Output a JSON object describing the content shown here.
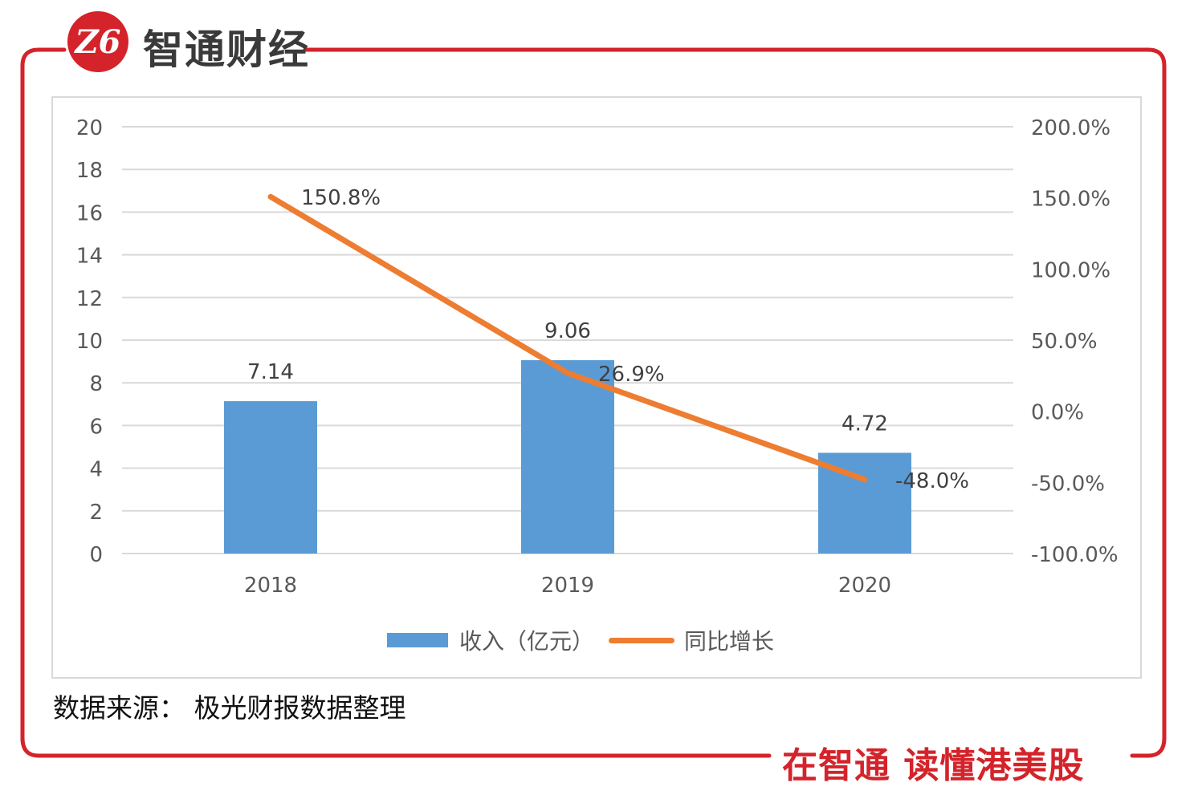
{
  "header": {
    "logo_text": "Z6",
    "brand_name": "智通财经"
  },
  "footer": {
    "source": "数据来源：  极光财报数据整理",
    "slogan": "在智通  读懂港美股"
  },
  "colors": {
    "frame": "#d4232a",
    "bar": "#5b9bd5",
    "line": "#ed7d31",
    "grid": "#d9d9d9",
    "axis_text": "#595959",
    "label_text": "#404040"
  },
  "chart_data": {
    "type": "bar",
    "title": "",
    "categories": [
      "2018",
      "2019",
      "2020"
    ],
    "series": [
      {
        "name": "收入（亿元）",
        "type": "bar",
        "axis": "left",
        "values": [
          7.14,
          9.06,
          4.72
        ],
        "labels": [
          "7.14",
          "9.06",
          "4.72"
        ]
      },
      {
        "name": "同比增长",
        "type": "line",
        "axis": "right",
        "values": [
          150.8,
          26.9,
          -48.0
        ],
        "labels": [
          "150.8%",
          "26.9%",
          "-48.0%"
        ]
      }
    ],
    "y_left": {
      "min": 0,
      "max": 20,
      "step": 2,
      "tick_labels": [
        "0",
        "2",
        "4",
        "6",
        "8",
        "10",
        "12",
        "14",
        "16",
        "18",
        "20"
      ]
    },
    "y_right": {
      "min": -100,
      "max": 200,
      "step": 50,
      "tick_labels": [
        "-100.0%",
        "-50.0%",
        "0.0%",
        "50.0%",
        "100.0%",
        "150.0%",
        "200.0%"
      ]
    },
    "grid": true,
    "legend": {
      "position": "bottom",
      "bar_label": "收入（亿元）",
      "line_label": "同比增长"
    }
  }
}
